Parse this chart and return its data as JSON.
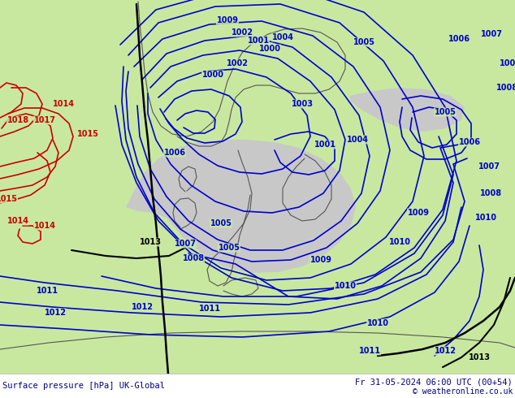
{
  "title_left": "Surface pressure [hPa] UK-Global",
  "title_right": "Fr 31-05-2024 06:00 UTC (00+54)",
  "copyright": "© weatheronline.co.uk",
  "bg_color": "#c8e8a0",
  "land_color": "#c8e8a0",
  "sea_color": "#c8c8c8",
  "blue_color": "#0000cc",
  "red_color": "#cc0000",
  "black_color": "#000000",
  "label_fontsize": 7,
  "fig_width": 6.34,
  "fig_height": 4.9,
  "dpi": 100
}
